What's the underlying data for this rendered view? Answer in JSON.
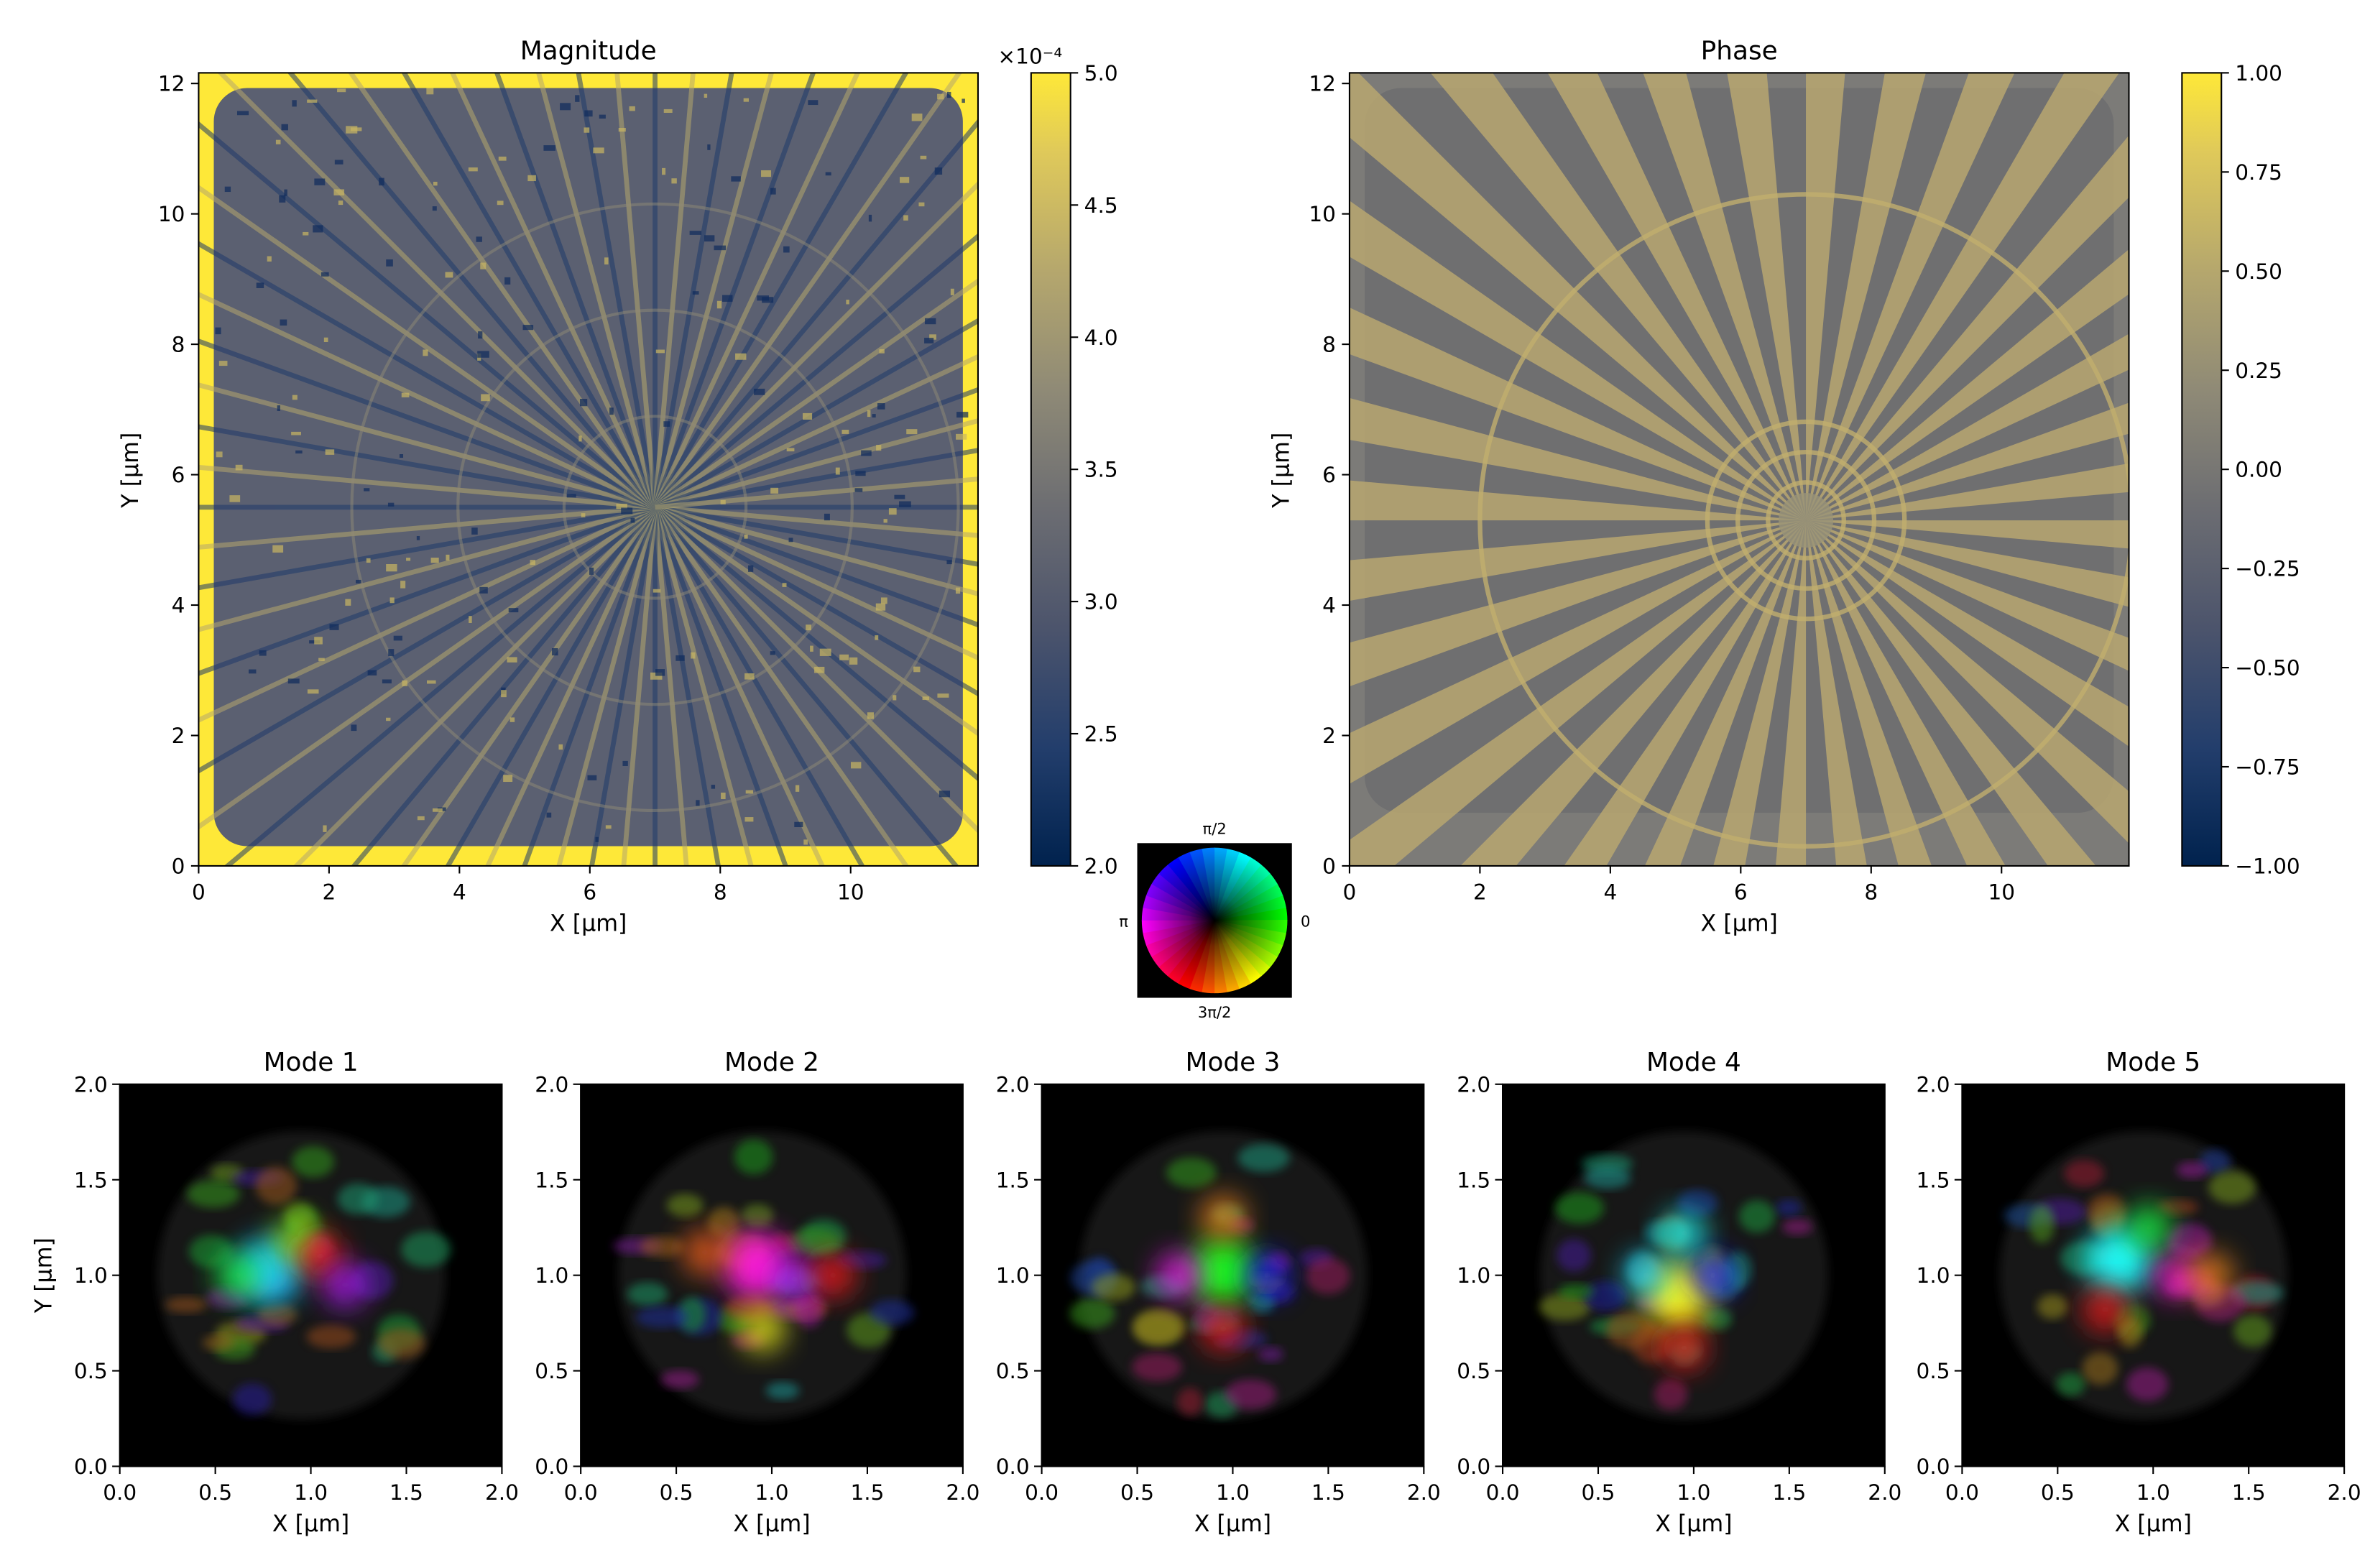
{
  "colors": {
    "cividis_low": "#00224e",
    "cividis_mid": "#7c7b78",
    "cividis_high": "#fee838",
    "gray_bg": "#7c7b78",
    "black": "#000000"
  },
  "chart_data": [
    {
      "id": "magnitude",
      "type": "heatmap",
      "title": "Magnitude",
      "xlabel": "X [µm]",
      "ylabel": "Y [µm]",
      "xlim": [
        0,
        12
      ],
      "ylim": [
        0,
        12
      ],
      "xticks": [
        "0",
        "2",
        "4",
        "6",
        "8",
        "10"
      ],
      "yticks": [
        "0",
        "2",
        "4",
        "6",
        "8",
        "10",
        "12"
      ],
      "colorbar": {
        "colormap": "cividis",
        "range": [
          2.0,
          5.0
        ],
        "scale_label": "×10⁻⁴",
        "ticks": [
          "2.0",
          "2.5",
          "3.0",
          "3.5",
          "4.0",
          "4.5",
          "5.0"
        ]
      }
    },
    {
      "id": "phase",
      "type": "heatmap",
      "title": "Phase",
      "xlabel": "X [µm]",
      "ylabel": "Y [µm]",
      "xlim": [
        0,
        12
      ],
      "ylim": [
        0,
        12
      ],
      "xticks": [
        "0",
        "2",
        "4",
        "6",
        "8",
        "10"
      ],
      "yticks": [
        "0",
        "2",
        "4",
        "6",
        "8",
        "10",
        "12"
      ],
      "colorbar": {
        "colormap": "cividis",
        "range": [
          -1.0,
          1.0
        ],
        "ticks": [
          "−1.00",
          "−0.75",
          "−0.50",
          "−0.25",
          "0.00",
          "0.25",
          "0.50",
          "0.75",
          "1.00"
        ]
      }
    },
    {
      "id": "phase_wheel",
      "type": "other",
      "description_labels": {
        "top": "π/2",
        "left": "π",
        "right": "0",
        "bottom": "3π/2"
      }
    },
    {
      "id": "modes",
      "type": "heatmap",
      "xlabel": "X [µm]",
      "ylabel": "Y [µm]",
      "xlim": [
        0,
        2.0
      ],
      "ylim": [
        0,
        2.0
      ],
      "xticks": [
        "0.0",
        "0.5",
        "1.0",
        "1.5",
        "2.0"
      ],
      "yticks": [
        "0.0",
        "0.5",
        "1.0",
        "1.5",
        "2.0"
      ],
      "panels": [
        {
          "title": "Mode 1",
          "spots": [
            {
              "x": 0.78,
              "y": 1.02,
              "hue": 195
            },
            {
              "x": 0.92,
              "y": 1.18,
              "hue": 90
            },
            {
              "x": 1.05,
              "y": 1.1,
              "hue": 0
            },
            {
              "x": 0.62,
              "y": 1.0,
              "hue": 130
            },
            {
              "x": 1.18,
              "y": 0.95,
              "hue": 280
            }
          ]
        },
        {
          "title": "Mode 2",
          "spots": [
            {
              "x": 0.92,
              "y": 1.05,
              "hue": 310
            },
            {
              "x": 1.12,
              "y": 0.98,
              "hue": 280
            },
            {
              "x": 0.65,
              "y": 1.12,
              "hue": 20
            },
            {
              "x": 1.32,
              "y": 1.0,
              "hue": 0
            },
            {
              "x": 0.95,
              "y": 0.72,
              "hue": 60
            }
          ]
        },
        {
          "title": "Mode 3",
          "spots": [
            {
              "x": 0.95,
              "y": 1.02,
              "hue": 120
            },
            {
              "x": 0.72,
              "y": 1.0,
              "hue": 300
            },
            {
              "x": 1.18,
              "y": 1.0,
              "hue": 240
            },
            {
              "x": 0.95,
              "y": 0.72,
              "hue": 0
            },
            {
              "x": 0.95,
              "y": 1.3,
              "hue": 30
            }
          ]
        },
        {
          "title": "Mode 4",
          "spots": [
            {
              "x": 0.92,
              "y": 0.9,
              "hue": 60
            },
            {
              "x": 0.75,
              "y": 1.0,
              "hue": 190
            },
            {
              "x": 1.1,
              "y": 1.0,
              "hue": 240
            },
            {
              "x": 0.95,
              "y": 1.22,
              "hue": 180
            },
            {
              "x": 0.95,
              "y": 0.62,
              "hue": 0
            }
          ]
        },
        {
          "title": "Mode 5",
          "spots": [
            {
              "x": 0.82,
              "y": 1.08,
              "hue": 180
            },
            {
              "x": 1.12,
              "y": 1.0,
              "hue": 310
            },
            {
              "x": 1.3,
              "y": 1.0,
              "hue": 30
            },
            {
              "x": 0.98,
              "y": 1.25,
              "hue": 130
            },
            {
              "x": 0.75,
              "y": 0.82,
              "hue": 0
            }
          ]
        }
      ]
    }
  ]
}
